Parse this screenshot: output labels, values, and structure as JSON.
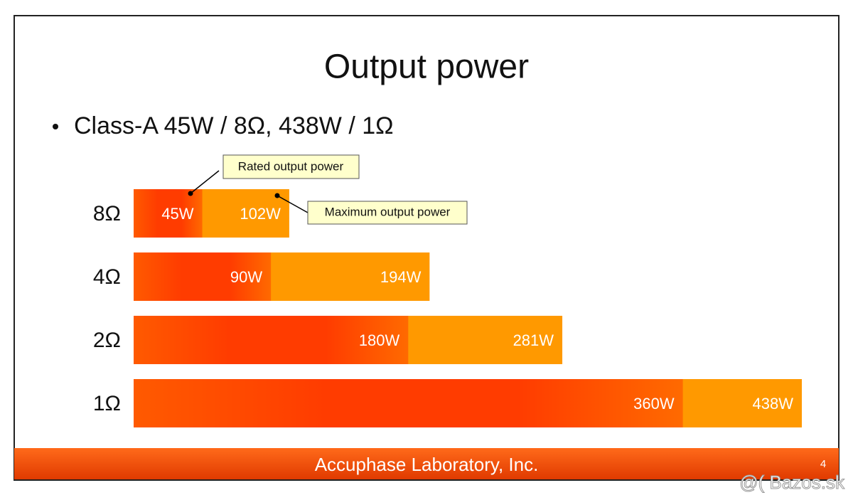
{
  "chart_data": {
    "type": "bar",
    "orientation": "horizontal",
    "title": "Output power",
    "subtitle": "Class-A 45W / 8Ω,  438W / 1Ω",
    "categories": [
      "8Ω",
      "4Ω",
      "2Ω",
      "1Ω"
    ],
    "series": [
      {
        "name": "Maximum output power",
        "color": "#ff9900",
        "values": [
          102,
          194,
          281,
          438
        ],
        "value_labels": [
          "102W",
          "194W",
          "281W",
          "438W"
        ]
      },
      {
        "name": "Rated output power",
        "color": "#ff3c00",
        "values": [
          45,
          90,
          180,
          360
        ],
        "value_labels": [
          "45W",
          "90W",
          "180W",
          "360W"
        ]
      }
    ],
    "footer": "Accuphase Laboratory,  Inc.",
    "page_number": "4",
    "watermark": "@( Bazos.sk"
  }
}
